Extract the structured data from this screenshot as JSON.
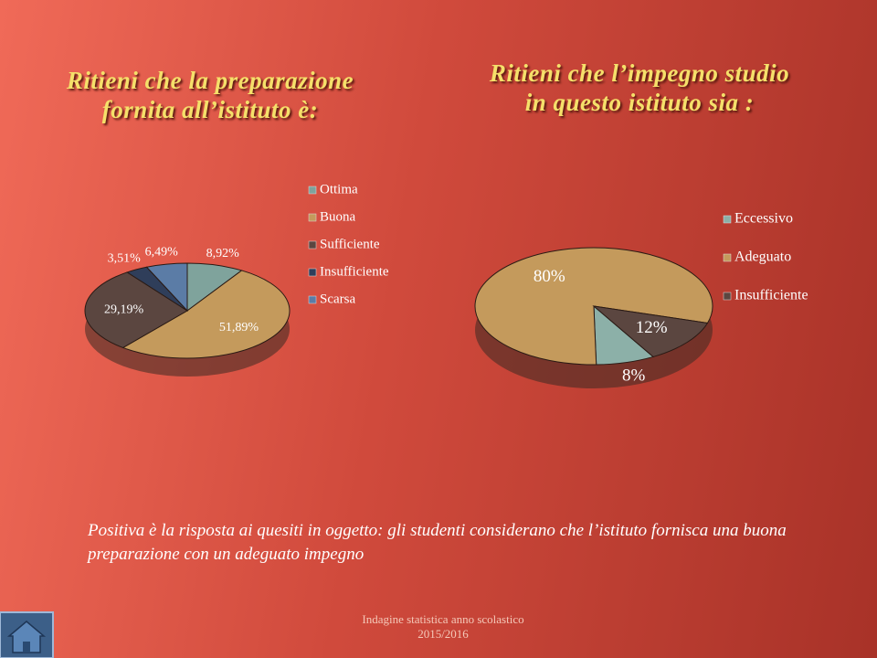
{
  "chart_data": [
    {
      "type": "pie",
      "title": "Ritieni che la preparazione\nfornita all’istituto è:",
      "categories": [
        "Ottima",
        "Buona",
        "Sufficiente",
        "Insufficiente",
        "Scarsa"
      ],
      "values": [
        8.92,
        51.89,
        29.19,
        3.51,
        6.49
      ],
      "value_labels": [
        "8,92%",
        "51,89%",
        "29,19%",
        "3,51%",
        "6,49%"
      ],
      "colors": [
        "#7fa39c",
        "#c49a5c",
        "#5b4640",
        "#2f3e5a",
        "#5b7ca6"
      ]
    },
    {
      "type": "pie",
      "title": "Ritieni che l’impegno studio\nin questo istituto sia :",
      "categories": [
        "Eccessivo",
        "Adeguato",
        "Insufficiente"
      ],
      "values": [
        8,
        80,
        12
      ],
      "value_labels": [
        "8%",
        "80%",
        "12%"
      ],
      "colors": [
        "#8cb0a8",
        "#c49a5c",
        "#5b4640"
      ]
    }
  ],
  "note": "Positiva è la risposta ai quesiti in oggetto: gli studenti considerano che l’istituto fornisca una buona preparazione con un adeguato impegno",
  "footer": "Indagine statistica  anno scolastico\n2015/2016"
}
